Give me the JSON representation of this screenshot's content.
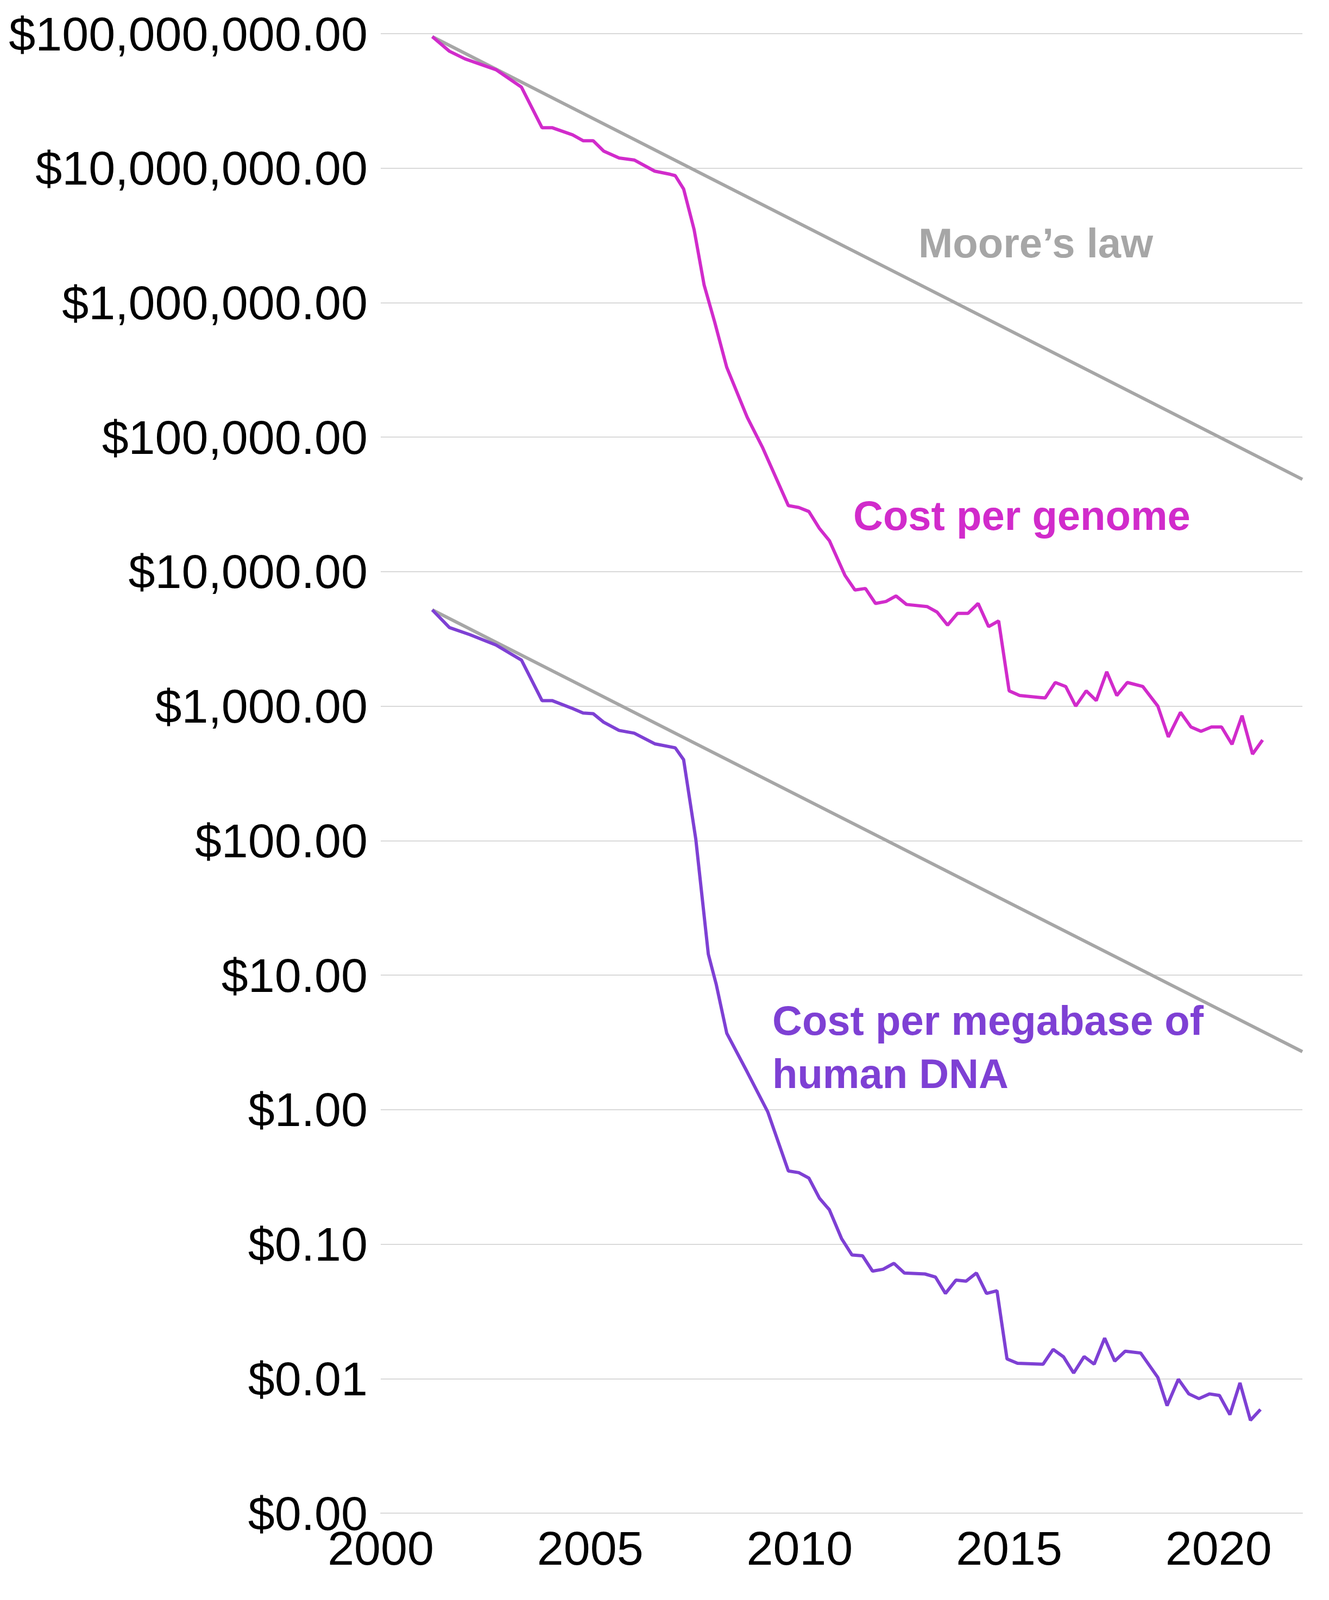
{
  "chart_data": {
    "type": "line",
    "log": "y",
    "grid": true,
    "xlim": [
      2000,
      2022
    ],
    "xticks": [
      2000,
      2005,
      2010,
      2015,
      2020
    ],
    "ylim": [
      0.001,
      100000000
    ],
    "yticks": [
      {
        "value": 0.001,
        "label": "$0.00"
      },
      {
        "value": 0.01,
        "label": "$0.01"
      },
      {
        "value": 0.1,
        "label": "$0.10"
      },
      {
        "value": 1,
        "label": "$1.00"
      },
      {
        "value": 10,
        "label": "$10.00"
      },
      {
        "value": 100,
        "label": "$100.00"
      },
      {
        "value": 1000,
        "label": "$1,000.00"
      },
      {
        "value": 10000,
        "label": "$10,000.00"
      },
      {
        "value": 100000,
        "label": "$100,000.00"
      },
      {
        "value": 1000000,
        "label": "$1,000,000.00"
      },
      {
        "value": 10000000,
        "label": "$10,000,000.00"
      },
      {
        "value": 100000000,
        "label": "$100,000,000.00"
      }
    ],
    "series": [
      {
        "name": "Cost per genome",
        "color": "#d12bcb",
        "x": [
          2001.23,
          2001.64,
          2002.01,
          2002.75,
          2003.36,
          2003.85,
          2004.09,
          2004.58,
          2004.83,
          2005.07,
          2005.32,
          2005.69,
          2006.05,
          2006.54,
          2006.91,
          2007.03,
          2007.23,
          2007.48,
          2007.72,
          2007.97,
          2008.26,
          2008.75,
          2009.12,
          2009.73,
          2009.98,
          2010.22,
          2010.47,
          2010.71,
          2011.08,
          2011.32,
          2011.57,
          2011.81,
          2012.06,
          2012.3,
          2012.55,
          2013.04,
          2013.28,
          2013.53,
          2013.77,
          2014.02,
          2014.26,
          2014.51,
          2014.75,
          2015.0,
          2015.25,
          2015.74,
          2015.86,
          2016.1,
          2016.35,
          2016.59,
          2016.84,
          2017.08,
          2017.33,
          2017.57,
          2017.82,
          2018.19,
          2018.55,
          2018.8,
          2019.09,
          2019.34,
          2019.58,
          2019.83,
          2020.07,
          2020.32,
          2020.56,
          2020.81,
          2021.05
        ],
        "values": [
          95000000,
          74000000,
          65000000,
          54000000,
          40000000,
          20000000,
          20000000,
          17700000,
          16000000,
          16000000,
          13400000,
          11900000,
          11500000,
          9500000,
          9000000,
          8800000,
          7000000,
          3500000,
          1350000,
          720000,
          330000,
          140000,
          83000,
          31000,
          30000,
          28000,
          21000,
          17000,
          9400,
          7300,
          7500,
          5800,
          6000,
          6600,
          5700,
          5500,
          5000,
          4000,
          4900,
          4900,
          5800,
          3900,
          4300,
          1300,
          1200,
          1160,
          1150,
          1500,
          1400,
          1000,
          1300,
          1100,
          1800,
          1200,
          1500,
          1400,
          1000,
          590,
          900,
          700,
          650,
          700,
          700,
          520,
          850,
          440,
          560
        ]
      },
      {
        "name": "Cost per megabase of human DNA",
        "color": "#7e40d4",
        "x": [
          2001.23,
          2001.64,
          2002.13,
          2002.75,
          2003.36,
          2003.85,
          2004.09,
          2004.58,
          2004.83,
          2005.07,
          2005.32,
          2005.69,
          2006.05,
          2006.54,
          2007.03,
          2007.23,
          2007.52,
          2007.82,
          2008.01,
          2008.26,
          2008.75,
          2009.24,
          2009.73,
          2009.98,
          2010.22,
          2010.47,
          2010.71,
          2011.0,
          2011.25,
          2011.5,
          2011.74,
          2011.99,
          2012.25,
          2012.5,
          2012.99,
          2013.24,
          2013.48,
          2013.73,
          2013.97,
          2014.22,
          2014.46,
          2014.71,
          2014.95,
          2015.2,
          2015.81,
          2016.05,
          2016.3,
          2016.54,
          2016.79,
          2017.03,
          2017.28,
          2017.52,
          2017.77,
          2018.14,
          2018.55,
          2018.77,
          2019.04,
          2019.29,
          2019.53,
          2019.78,
          2020.02,
          2020.27,
          2020.51,
          2020.76,
          2021.0
        ],
        "values": [
          5200,
          3840,
          3400,
          2850,
          2200,
          1100,
          1100,
          960,
          890,
          880,
          760,
          660,
          630,
          525,
          490,
          400,
          103,
          14.3,
          8.5,
          3.7,
          1.9,
          0.96,
          0.35,
          0.34,
          0.31,
          0.22,
          0.18,
          0.11,
          0.083,
          0.082,
          0.063,
          0.065,
          0.072,
          0.061,
          0.06,
          0.057,
          0.043,
          0.054,
          0.053,
          0.061,
          0.043,
          0.045,
          0.014,
          0.013,
          0.0128,
          0.0165,
          0.0145,
          0.011,
          0.0146,
          0.0128,
          0.02,
          0.0135,
          0.016,
          0.0155,
          0.0102,
          0.0063,
          0.0099,
          0.0077,
          0.0071,
          0.0077,
          0.0075,
          0.0054,
          0.0093,
          0.0049,
          0.0059
        ]
      },
      {
        "name": "Moore’s law",
        "color": "#a6a6a6",
        "lines": [
          {
            "x": [
              2001.23,
              2022
            ],
            "values": [
              95000000,
              48600
            ]
          },
          {
            "x": [
              2001.23,
              2022
            ],
            "values": [
              5200,
              2.7
            ]
          }
        ]
      }
    ]
  }
}
